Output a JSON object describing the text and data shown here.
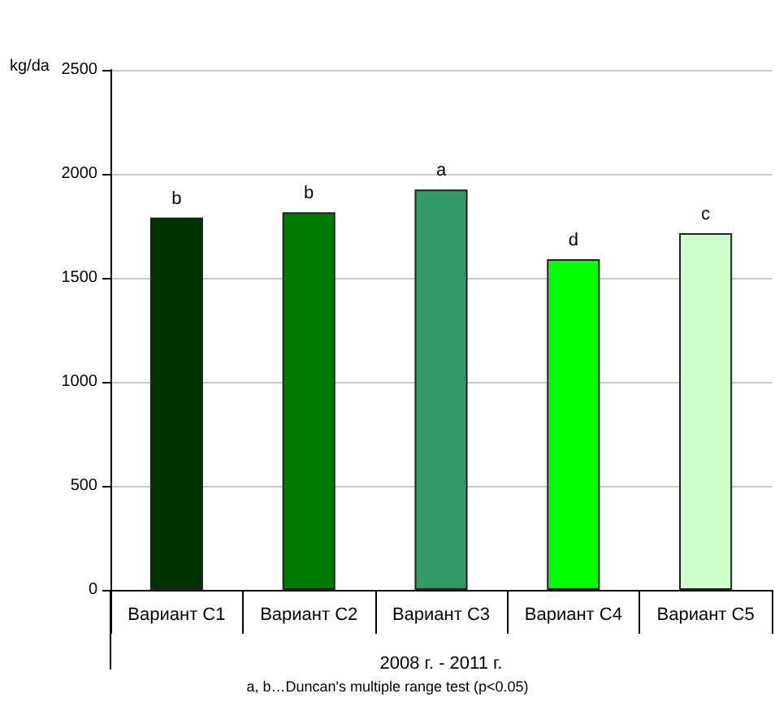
{
  "chart_data": {
    "type": "bar",
    "categories": [
      "Вариант C1",
      "Вариант C2",
      "Вариант C3",
      "Вариант C4",
      "Вариант C5"
    ],
    "values": [
      1790,
      1815,
      1925,
      1590,
      1715
    ],
    "colors": [
      "#003300",
      "#007a00",
      "#339966",
      "#00ff00",
      "#ccffcc"
    ],
    "value_labels": [
      "b",
      "b",
      "a",
      "d",
      "c"
    ],
    "ylabel": "kg/da",
    "xlabel": "2008 г. - 2011 г.",
    "annotations": [
      "a, b…Duncan's multiple range test (p<0.05)"
    ],
    "ylim": [
      0,
      2500
    ],
    "yticks": [
      0,
      500,
      1000,
      1500,
      2000,
      2500
    ],
    "grid": "y"
  }
}
